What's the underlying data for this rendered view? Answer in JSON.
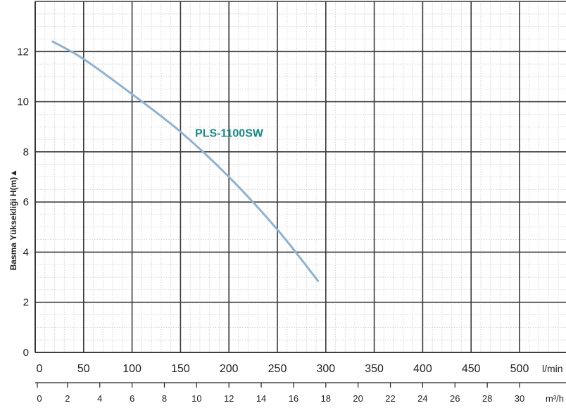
{
  "chart_data": {
    "type": "line",
    "ylabel": "Basma Yüksekliği H(m)",
    "ylabel_arrow": "▲",
    "ylim": [
      0,
      14
    ],
    "yticks": [
      0,
      2,
      4,
      6,
      8,
      10,
      12
    ],
    "x_primary": {
      "unit": "l/min",
      "ticks": [
        0,
        50,
        100,
        150,
        200,
        250,
        300,
        350,
        400,
        450,
        500
      ],
      "range": [
        0,
        550
      ]
    },
    "x_secondary": {
      "unit": "m³/h",
      "ticks": [
        0,
        2,
        4,
        6,
        8,
        10,
        12,
        14,
        16,
        18,
        20,
        22,
        24,
        26,
        28,
        30
      ],
      "range": [
        0,
        33
      ]
    },
    "grid": true,
    "series": [
      {
        "name": "PLS-1100SW",
        "color": "#8fb2cf",
        "label_color": "#1a8a86",
        "x": [
          18,
          50,
          100,
          150,
          200,
          250,
          292
        ],
        "y": [
          12.4,
          11.7,
          10.3,
          8.8,
          7.0,
          4.9,
          2.85
        ]
      }
    ]
  }
}
